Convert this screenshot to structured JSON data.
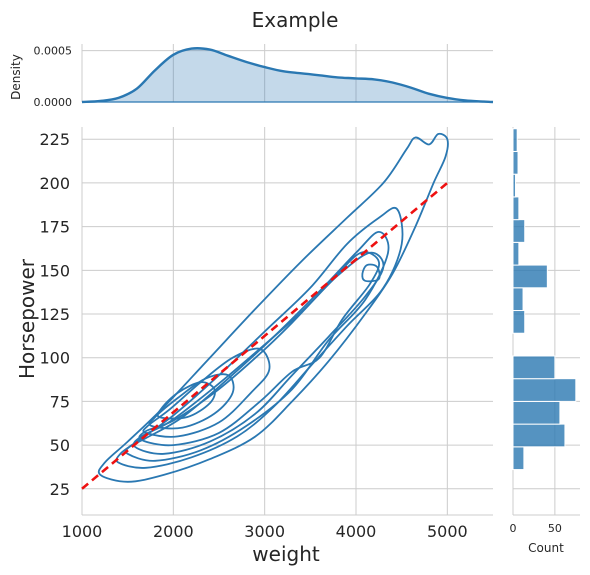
{
  "chart_data": {
    "title": "Example",
    "joint": {
      "type": "kde-contour",
      "xlabel": "weight",
      "ylabel": "Horsepower",
      "xlim": [
        1000,
        5500
      ],
      "ylim": [
        10,
        232
      ],
      "xticks": [
        1000,
        2000,
        3000,
        4000,
        5000
      ],
      "yticks": [
        25,
        50,
        75,
        100,
        125,
        150,
        175,
        200,
        225
      ],
      "color": "#2a78b2",
      "levels": [
        [
          [
            1200,
            33
          ],
          [
            1500,
            29
          ],
          [
            1900,
            33
          ],
          [
            2400,
            42
          ],
          [
            2900,
            55
          ],
          [
            3300,
            75
          ],
          [
            3700,
            98
          ],
          [
            4100,
            125
          ],
          [
            4400,
            148
          ],
          [
            4650,
            175
          ],
          [
            4850,
            200
          ],
          [
            4980,
            215
          ],
          [
            5000,
            225
          ],
          [
            4900,
            228
          ],
          [
            4800,
            222
          ],
          [
            4650,
            226
          ],
          [
            4550,
            219
          ],
          [
            4300,
            200
          ],
          [
            3900,
            180
          ],
          [
            3400,
            155
          ],
          [
            2900,
            128
          ],
          [
            2400,
            100
          ],
          [
            1900,
            72
          ],
          [
            1500,
            52
          ],
          [
            1250,
            40
          ]
        ],
        [
          [
            1400,
            40
          ],
          [
            1700,
            37
          ],
          [
            2200,
            43
          ],
          [
            2700,
            55
          ],
          [
            3100,
            72
          ],
          [
            3500,
            95
          ],
          [
            3900,
            118
          ],
          [
            4300,
            140
          ],
          [
            4500,
            165
          ],
          [
            4450,
            185
          ],
          [
            4250,
            180
          ],
          [
            3900,
            165
          ],
          [
            3500,
            140
          ],
          [
            3000,
            115
          ],
          [
            2500,
            90
          ],
          [
            2000,
            67
          ],
          [
            1600,
            52
          ],
          [
            1420,
            45
          ]
        ],
        [
          [
            1500,
            45
          ],
          [
            1800,
            41
          ],
          [
            2300,
            47
          ],
          [
            2800,
            61
          ],
          [
            3300,
            82
          ],
          [
            3700,
            110
          ],
          [
            4100,
            133
          ],
          [
            4350,
            160
          ],
          [
            4250,
            172
          ],
          [
            4000,
            160
          ],
          [
            3600,
            138
          ],
          [
            3100,
            112
          ],
          [
            2600,
            88
          ],
          [
            2100,
            66
          ],
          [
            1700,
            54
          ],
          [
            1520,
            49
          ]
        ],
        [
          [
            1580,
            49
          ],
          [
            1900,
            45
          ],
          [
            2400,
            52
          ],
          [
            2900,
            68
          ],
          [
            3300,
            90
          ],
          [
            3700,
            112
          ],
          [
            4100,
            135
          ],
          [
            4300,
            152
          ],
          [
            4150,
            160
          ],
          [
            3800,
            147
          ],
          [
            3400,
            126
          ],
          [
            2900,
            103
          ],
          [
            2400,
            81
          ],
          [
            1950,
            63
          ],
          [
            1650,
            55
          ]
        ],
        [
          [
            1650,
            53
          ],
          [
            2000,
            50
          ],
          [
            2500,
            57
          ],
          [
            2950,
            75
          ],
          [
            3300,
            92
          ],
          [
            3600,
            100
          ],
          [
            3850,
            122
          ],
          [
            4150,
            142
          ],
          [
            4250,
            155
          ],
          [
            4050,
            160
          ],
          [
            3750,
            145
          ],
          [
            3300,
            120
          ],
          [
            2900,
            100
          ],
          [
            2450,
            80
          ],
          [
            2000,
            64
          ],
          [
            1700,
            58
          ]
        ],
        [
          [
            1700,
            57
          ],
          [
            2050,
            55
          ],
          [
            2500,
            63
          ],
          [
            2850,
            80
          ],
          [
            3050,
            93
          ],
          [
            2950,
            105
          ],
          [
            2650,
            100
          ],
          [
            2300,
            86
          ],
          [
            1950,
            70
          ],
          [
            1720,
            61
          ]
        ],
        [
          [
            1760,
            61
          ],
          [
            2100,
            60
          ],
          [
            2450,
            68
          ],
          [
            2650,
            80
          ],
          [
            2600,
            90
          ],
          [
            2350,
            88
          ],
          [
            2050,
            77
          ],
          [
            1800,
            66
          ]
        ],
        [
          [
            1850,
            66
          ],
          [
            2150,
            66
          ],
          [
            2400,
            74
          ],
          [
            2450,
            82
          ],
          [
            2300,
            86
          ],
          [
            2050,
            80
          ],
          [
            1870,
            71
          ]
        ],
        [
          [
            4100,
            144
          ],
          [
            4250,
            145
          ],
          [
            4230,
            152
          ],
          [
            4120,
            153
          ],
          [
            4070,
            148
          ]
        ]
      ],
      "regression": {
        "x": [
          1000,
          5000
        ],
        "y": [
          25,
          200
        ],
        "color": "#ee1111"
      }
    },
    "top_kde": {
      "ylabel": "Density",
      "yticks": [
        0,
        0.0005
      ],
      "ytick_labels": [
        "0.0000",
        "0.0005"
      ],
      "ymax": 0.000565,
      "x": [
        1000,
        1200,
        1400,
        1600,
        1800,
        2000,
        2200,
        2400,
        2600,
        2800,
        3000,
        3200,
        3400,
        3600,
        3800,
        4000,
        4200,
        4400,
        4600,
        4800,
        5000,
        5200,
        5400,
        5500
      ],
      "density": [
        0.0,
        1e-05,
        4e-05,
        0.00013,
        0.00031,
        0.00046,
        0.00052,
        0.00051,
        0.00045,
        0.00039,
        0.00034,
        0.0003,
        0.00028,
        0.00026,
        0.00024,
        0.00023,
        0.00022,
        0.00019,
        0.00014,
        8e-05,
        4e-05,
        1.5e-05,
        4e-06,
        0.0
      ]
    },
    "right_hist": {
      "xlabel": "Count",
      "xticks": [
        0,
        50
      ],
      "xmax": 80,
      "bins": [
        {
          "lo": 36,
          "hi": 49,
          "count": 13
        },
        {
          "lo": 49,
          "hi": 62,
          "count": 62
        },
        {
          "lo": 62,
          "hi": 75,
          "count": 56
        },
        {
          "lo": 75,
          "hi": 88,
          "count": 75
        },
        {
          "lo": 88,
          "hi": 101,
          "count": 50
        },
        {
          "lo": 101,
          "hi": 114,
          "count": 0
        },
        {
          "lo": 114,
          "hi": 127,
          "count": 14
        },
        {
          "lo": 127,
          "hi": 140,
          "count": 12
        },
        {
          "lo": 140,
          "hi": 153,
          "count": 41
        },
        {
          "lo": 153,
          "hi": 166,
          "count": 7
        },
        {
          "lo": 166,
          "hi": 179,
          "count": 14
        },
        {
          "lo": 179,
          "hi": 192,
          "count": 7
        },
        {
          "lo": 192,
          "hi": 205,
          "count": 3
        },
        {
          "lo": 205,
          "hi": 218,
          "count": 6
        },
        {
          "lo": 218,
          "hi": 231,
          "count": 5
        }
      ],
      "color": "#2a78b2"
    }
  }
}
